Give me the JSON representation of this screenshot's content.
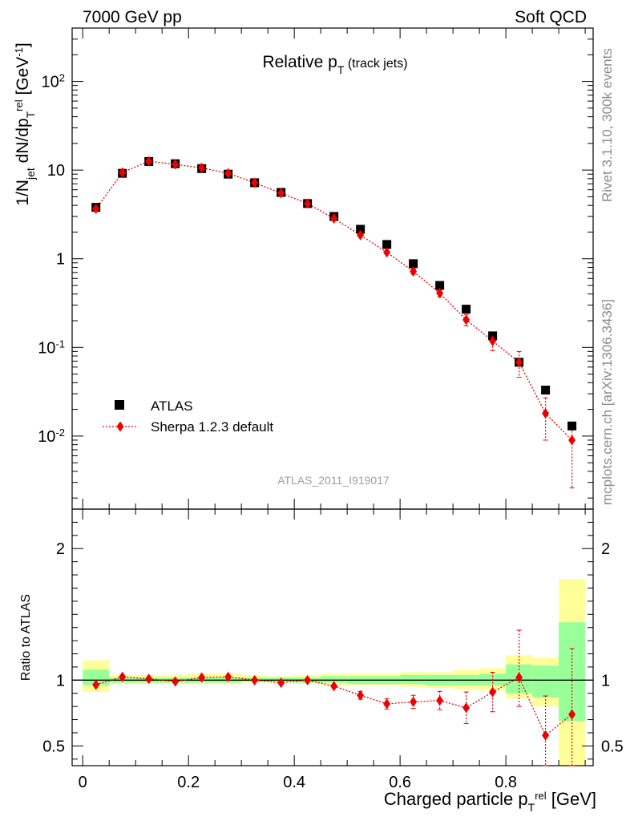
{
  "header": {
    "left": "7000 GeV pp",
    "right": "Soft QCD"
  },
  "side_labels": {
    "top": "Rivet 3.1.10,  300k events",
    "bottom": "mcplots.cern.ch [arXiv:1306.3436]"
  },
  "watermark": "ATLAS_2011_I919017",
  "colors": {
    "atlas": "#000000",
    "mc": "#ee0000",
    "band_inner": "#99ff99",
    "band_outer": "#ffff99"
  },
  "chart_data": [
    {
      "type": "scatter",
      "panel": "main",
      "title": "Relative p_T (track jets)",
      "ylabel": "1/N_jet dN/dp_T^rel [GeV^-1]",
      "yscale": "log",
      "ylim": [
        0.0015,
        400
      ],
      "xlim": [
        -0.02,
        0.965
      ],
      "ytick_labels": [
        "10^-2",
        "10^-1",
        "1",
        "10",
        "10^2"
      ],
      "legend": {
        "placement": "bottom-left",
        "entries": [
          "ATLAS",
          "Sherpa 1.2.3 default"
        ]
      },
      "x": [
        0.025,
        0.075,
        0.125,
        0.175,
        0.225,
        0.275,
        0.325,
        0.375,
        0.425,
        0.475,
        0.525,
        0.575,
        0.625,
        0.675,
        0.725,
        0.775,
        0.825,
        0.875,
        0.925
      ],
      "series": [
        {
          "name": "ATLAS",
          "marker": "square",
          "values": [
            3.8,
            9.2,
            12.5,
            11.8,
            10.4,
            9.0,
            7.2,
            5.6,
            4.2,
            3.0,
            2.15,
            1.45,
            0.88,
            0.5,
            0.27,
            0.135,
            0.068,
            0.033,
            0.013
          ]
        },
        {
          "name": "Sherpa 1.2.3 default",
          "marker": "diamond",
          "line": "dotted",
          "values": [
            3.65,
            9.4,
            12.6,
            11.6,
            10.6,
            9.2,
            7.2,
            5.5,
            4.2,
            2.85,
            1.85,
            1.18,
            0.72,
            0.41,
            0.205,
            0.118,
            0.068,
            0.018,
            0.009
          ],
          "err_low": [
            0.0,
            0.0,
            0.0,
            0.0,
            0.0,
            0.0,
            0.0,
            0.0,
            0.0,
            0.0,
            0.0,
            0.05,
            0.05,
            0.04,
            0.03,
            0.026,
            0.022,
            0.009,
            0.0064
          ],
          "err_high": [
            0.0,
            0.0,
            0.0,
            0.0,
            0.0,
            0.0,
            0.0,
            0.0,
            0.0,
            0.0,
            0.0,
            0.05,
            0.05,
            0.04,
            0.03,
            0.026,
            0.022,
            0.009,
            0.0045
          ]
        }
      ]
    },
    {
      "type": "scatter",
      "panel": "ratio",
      "ylabel": "Ratio to ATLAS",
      "xlabel": "Charged particle p_T^rel [GeV]",
      "ylim": [
        0.35,
        2.3
      ],
      "yticks": [
        0.5,
        1,
        2
      ],
      "ytick_labels": [
        "0.5",
        "1",
        "2"
      ],
      "xticks": [
        0,
        0.2,
        0.4,
        0.6,
        0.8
      ],
      "xtick_labels": [
        "0",
        "0.2",
        "0.4",
        "0.6",
        "0.8"
      ],
      "bins": [
        [
          0,
          0.05
        ],
        [
          0.05,
          0.1
        ],
        [
          0.1,
          0.15
        ],
        [
          0.15,
          0.2
        ],
        [
          0.2,
          0.25
        ],
        [
          0.25,
          0.3
        ],
        [
          0.3,
          0.35
        ],
        [
          0.35,
          0.4
        ],
        [
          0.4,
          0.45
        ],
        [
          0.45,
          0.5
        ],
        [
          0.5,
          0.55
        ],
        [
          0.55,
          0.6
        ],
        [
          0.6,
          0.65
        ],
        [
          0.65,
          0.7
        ],
        [
          0.7,
          0.75
        ],
        [
          0.75,
          0.8
        ],
        [
          0.8,
          0.85
        ],
        [
          0.85,
          0.9
        ],
        [
          0.9,
          0.95
        ]
      ],
      "bands": {
        "outer_low": [
          0.91,
          0.97,
          0.97,
          0.97,
          0.97,
          0.97,
          0.98,
          0.98,
          0.97,
          0.96,
          0.96,
          0.96,
          0.95,
          0.94,
          0.93,
          0.92,
          0.86,
          0.8,
          0.35
        ],
        "outer_high": [
          1.15,
          1.04,
          1.04,
          1.04,
          1.05,
          1.05,
          1.04,
          1.03,
          1.04,
          1.05,
          1.05,
          1.05,
          1.06,
          1.06,
          1.08,
          1.09,
          1.19,
          1.17,
          1.77
        ],
        "inner_low": [
          0.96,
          0.98,
          0.98,
          0.98,
          0.98,
          0.98,
          0.99,
          0.99,
          0.98,
          0.98,
          0.97,
          0.97,
          0.97,
          0.96,
          0.96,
          0.96,
          0.9,
          0.87,
          0.69
        ],
        "inner_high": [
          1.08,
          1.02,
          1.02,
          1.02,
          1.02,
          1.02,
          1.02,
          1.02,
          1.02,
          1.03,
          1.03,
          1.03,
          1.04,
          1.04,
          1.04,
          1.05,
          1.12,
          1.11,
          1.44
        ]
      },
      "x": [
        0.025,
        0.075,
        0.125,
        0.175,
        0.225,
        0.275,
        0.325,
        0.375,
        0.425,
        0.475,
        0.525,
        0.575,
        0.625,
        0.675,
        0.725,
        0.775,
        0.825,
        0.875,
        0.925
      ],
      "series": [
        {
          "name": "Sherpa 1.2.3 default",
          "marker": "diamond",
          "line": "dotted",
          "values": [
            0.965,
            1.025,
            1.01,
            0.99,
            1.02,
            1.025,
            1.0,
            0.98,
            1.0,
            0.955,
            0.885,
            0.82,
            0.835,
            0.845,
            0.79,
            0.91,
            1.02,
            0.58,
            0.74
          ],
          "err_low": [
            0.0,
            0.0,
            0.0,
            0.0,
            0.0,
            0.0,
            0.0,
            0.0,
            0.0,
            0.0,
            0.03,
            0.04,
            0.05,
            0.07,
            0.12,
            0.15,
            0.22,
            0.25,
            0.4
          ],
          "err_high": [
            0.0,
            0.0,
            0.0,
            0.0,
            0.0,
            0.0,
            0.0,
            0.0,
            0.0,
            0.0,
            0.03,
            0.04,
            0.05,
            0.07,
            0.12,
            0.15,
            0.36,
            0.3,
            0.5
          ]
        }
      ]
    }
  ]
}
